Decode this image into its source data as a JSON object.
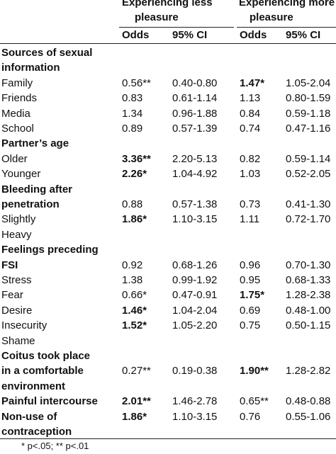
{
  "header": {
    "group_less": "Experiencing less",
    "group_less_2": "pleasure",
    "group_more": "Experiencing more",
    "group_more_2": "pleasure",
    "odds_less": "Odds",
    "ci_less": "95% CI",
    "odds_more": "Odds",
    "ci_more": "95% CI"
  },
  "rows": [
    {
      "label": "Sources of sexual",
      "bold": [
        "label"
      ]
    },
    {
      "label": "information",
      "bold": [
        "label"
      ]
    },
    {
      "label": "Family",
      "odds_less": "0.56**",
      "ci_less": "0.40-0.80",
      "odds_more": "1.47*",
      "ci_more": "1.05-2.04",
      "bold": [
        "odds_more"
      ]
    },
    {
      "label": "Friends",
      "odds_less": "0.83",
      "ci_less": "0.61-1.14",
      "odds_more": "1.13",
      "ci_more": "0.80-1.59"
    },
    {
      "label": "Media",
      "odds_less": "1.34",
      "ci_less": "0.96-1.88",
      "odds_more": "0.84",
      "ci_more": "0.59-1.18"
    },
    {
      "label": "School",
      "odds_less": "0.89",
      "ci_less": "0.57-1.39",
      "odds_more": "0.74",
      "ci_more": "0.47-1.16"
    },
    {
      "label": "Partner’s age",
      "bold": [
        "label"
      ]
    },
    {
      "label": "Older",
      "odds_less": "3.36**",
      "ci_less": "2.20-5.13",
      "odds_more": "0.82",
      "ci_more": "0.59-1.14",
      "bold": [
        "odds_less"
      ]
    },
    {
      "label": "Younger",
      "odds_less": "2.26*",
      "ci_less": "1.04-4.92",
      "odds_more": "1.03",
      "ci_more": "0.52-2.05",
      "bold": [
        "odds_less"
      ]
    },
    {
      "label": "Bleeding after",
      "bold": [
        "label"
      ]
    },
    {
      "label": "penetration",
      "odds_less": "0.88",
      "ci_less": "0.57-1.38",
      "odds_more": "0.73",
      "ci_more": "0.41-1.30",
      "bold": [
        "label"
      ]
    },
    {
      "label": "Slightly",
      "odds_less": "1.86*",
      "ci_less": "1.10-3.15",
      "odds_more": "1.11",
      "ci_more": "0.72-1.70",
      "bold": [
        "odds_less"
      ]
    },
    {
      "label": "Heavy"
    },
    {
      "label": "Feelings preceding",
      "bold": [
        "label"
      ]
    },
    {
      "label": "FSI",
      "odds_less": "0.92",
      "ci_less": "0.68-1.26",
      "odds_more": "0.96",
      "ci_more": "0.70-1.30",
      "bold": [
        "label"
      ]
    },
    {
      "label": "Stress",
      "odds_less": "1.38",
      "ci_less": "0.99-1.92",
      "odds_more": "0.95",
      "ci_more": "0.68-1.33"
    },
    {
      "label": "Fear",
      "odds_less": "0.66*",
      "ci_less": "0.47-0.91",
      "odds_more": "1.75*",
      "ci_more": "1.28-2.38",
      "bold": [
        "odds_more"
      ]
    },
    {
      "label": "Desire",
      "odds_less": "1.46*",
      "ci_less": "1.04-2.04",
      "odds_more": "0.69",
      "ci_more": "0.48-1.00",
      "bold": [
        "odds_less"
      ]
    },
    {
      "label": "Insecurity",
      "odds_less": "1.52*",
      "ci_less": "1.05-2.20",
      "odds_more": "0.75",
      "ci_more": "0.50-1.15",
      "bold": [
        "odds_less"
      ]
    },
    {
      "label": "Shame"
    },
    {
      "label": "Coitus took place",
      "bold": [
        "label"
      ]
    },
    {
      "label": "in a comfortable",
      "odds_less": "0.27**",
      "ci_less": "0.19-0.38",
      "odds_more": "1.90**",
      "ci_more": "1.28-2.82",
      "bold": [
        "label",
        "odds_more"
      ]
    },
    {
      "label": "environment",
      "bold": [
        "label"
      ]
    },
    {
      "label": "Painful intercourse",
      "odds_less": "2.01**",
      "ci_less": "1.46-2.78",
      "odds_more": "0.65**",
      "ci_more": "0.48-0.88",
      "bold": [
        "label",
        "odds_less"
      ]
    },
    {
      "label": "Non-use of",
      "odds_less": "1.86*",
      "ci_less": "1.10-3.15",
      "odds_more": "0.76",
      "ci_more": "0.55-1.06",
      "bold": [
        "label",
        "odds_less"
      ]
    },
    {
      "label": "contraception",
      "bold": [
        "label"
      ]
    }
  ],
  "footnote": "* p<.05; ** p<.01"
}
